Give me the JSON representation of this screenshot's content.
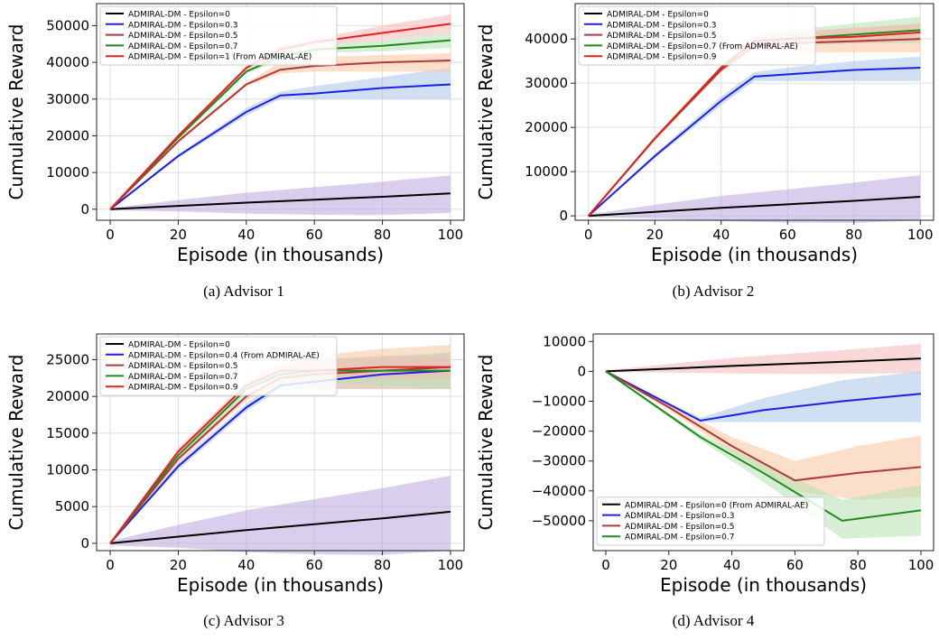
{
  "chart_data": [
    {
      "type": "line",
      "caption": "(a) Advisor 1",
      "xlabel": "Episode (in thousands)",
      "ylabel": "Cumulative Reward",
      "xlim": [
        -4,
        104
      ],
      "ylim": [
        -3000,
        56000
      ],
      "xticks": [
        0,
        20,
        40,
        60,
        80,
        100
      ],
      "yticks": [
        0,
        10000,
        20000,
        30000,
        40000,
        50000
      ],
      "grid": true,
      "legend_position": "top-left",
      "series": [
        {
          "name": "ADMIRAL-DM - Epsilon=0",
          "color": "#000000",
          "band_color": "#b9a8dc",
          "x": [
            0,
            20,
            40,
            60,
            80,
            100
          ],
          "y": [
            0,
            900,
            1800,
            2600,
            3400,
            4300
          ],
          "lower": [
            -300,
            -600,
            -1200,
            -1500,
            -1600,
            -1000
          ],
          "upper": [
            300,
            2500,
            4500,
            6000,
            7500,
            9200
          ]
        },
        {
          "name": "ADMIRAL-DM - Epsilon=0.3",
          "color": "#1f1fe6",
          "band_color": "#aac4e6",
          "x": [
            0,
            20,
            40,
            50,
            60,
            80,
            100
          ],
          "y": [
            0,
            14500,
            26500,
            31000,
            31500,
            33000,
            34000
          ],
          "lower": [
            0,
            14000,
            25500,
            30000,
            30000,
            30000,
            30000
          ],
          "upper": [
            0,
            15000,
            27500,
            32000,
            33500,
            36000,
            38500
          ]
        },
        {
          "name": "ADMIRAL-DM - Epsilon=0.5",
          "color": "#b03a3a",
          "band_color": "#f7c5a0",
          "x": [
            0,
            20,
            40,
            50,
            60,
            80,
            100
          ],
          "y": [
            0,
            18500,
            34000,
            38000,
            39000,
            40000,
            40500
          ],
          "lower": [
            0,
            18000,
            33500,
            37000,
            37500,
            37500,
            37500
          ],
          "upper": [
            0,
            19000,
            34500,
            40000,
            41500,
            42000,
            42500
          ]
        },
        {
          "name": "ADMIRAL-DM - Epsilon=0.7",
          "color": "#1f8a1f",
          "band_color": "#b7e0b0",
          "x": [
            0,
            20,
            40,
            50,
            60,
            80,
            100
          ],
          "y": [
            0,
            19500,
            37500,
            41500,
            43500,
            44500,
            46000
          ],
          "lower": [
            0,
            19000,
            37000,
            40500,
            42500,
            43000,
            44000
          ],
          "upper": [
            0,
            20000,
            38000,
            42500,
            44500,
            46000,
            48000
          ]
        },
        {
          "name": "ADMIRAL-DM - Epsilon=1 (From ADMIRAL-AE)",
          "color": "#e61f1f",
          "band_color": "#f8b8b8",
          "x": [
            0,
            20,
            40,
            50,
            60,
            80,
            100
          ],
          "y": [
            0,
            20000,
            38500,
            43500,
            45500,
            48000,
            50500
          ],
          "lower": [
            0,
            19500,
            38000,
            43000,
            44500,
            46000,
            48000
          ],
          "upper": [
            0,
            20500,
            39000,
            44500,
            46500,
            50000,
            53000
          ]
        }
      ]
    },
    {
      "type": "line",
      "caption": "(b) Advisor 2",
      "xlabel": "Episode (in thousands)",
      "ylabel": "Cumulative Reward",
      "xlim": [
        -4,
        104
      ],
      "ylim": [
        -1000,
        48000
      ],
      "xticks": [
        0,
        20,
        40,
        60,
        80,
        100
      ],
      "yticks": [
        0,
        10000,
        20000,
        30000,
        40000
      ],
      "grid": true,
      "legend_position": "top-left",
      "series": [
        {
          "name": "ADMIRAL-DM - Epsilon=0",
          "color": "#000000",
          "band_color": "#b9a8dc",
          "x": [
            0,
            20,
            40,
            60,
            80,
            100
          ],
          "y": [
            0,
            900,
            1800,
            2600,
            3400,
            4300
          ],
          "lower": [
            -300,
            -600,
            -1200,
            -1500,
            -1600,
            -1000
          ],
          "upper": [
            300,
            2500,
            4500,
            6000,
            7500,
            9200
          ]
        },
        {
          "name": "ADMIRAL-DM - Epsilon=0.3",
          "color": "#1f1fe6",
          "band_color": "#aac4e6",
          "x": [
            0,
            20,
            40,
            50,
            60,
            80,
            100
          ],
          "y": [
            0,
            13500,
            26000,
            31500,
            32000,
            33000,
            33500
          ],
          "lower": [
            0,
            13000,
            25000,
            30500,
            30500,
            30500,
            30500
          ],
          "upper": [
            0,
            14000,
            27000,
            32500,
            33500,
            35000,
            36000
          ]
        },
        {
          "name": "ADMIRAL-DM - Epsilon=0.5",
          "color": "#b03a3a",
          "band_color": "#f7c5a0",
          "x": [
            0,
            20,
            40,
            50,
            60,
            80,
            100
          ],
          "y": [
            0,
            17500,
            33000,
            38500,
            39000,
            39500,
            40000
          ],
          "lower": [
            0,
            17000,
            32500,
            37500,
            37000,
            37000,
            37000
          ],
          "upper": [
            0,
            18000,
            33500,
            40000,
            41500,
            42500,
            43500
          ]
        },
        {
          "name": "ADMIRAL-DM - Epsilon=0.7 (From ADMIRAL-AE)",
          "color": "#1f8a1f",
          "band_color": "#b7e0b0",
          "x": [
            0,
            20,
            40,
            50,
            60,
            80,
            100
          ],
          "y": [
            0,
            17500,
            33500,
            39500,
            40000,
            41000,
            42000
          ],
          "lower": [
            0,
            17000,
            33000,
            38500,
            38500,
            39000,
            39000
          ],
          "upper": [
            0,
            18000,
            34000,
            41000,
            42000,
            43500,
            45000
          ]
        },
        {
          "name": "ADMIRAL-DM - Epsilon=0.9",
          "color": "#e61f1f",
          "band_color": "#f8b8b8",
          "x": [
            0,
            20,
            40,
            50,
            60,
            80,
            100
          ],
          "y": [
            0,
            17500,
            33500,
            39500,
            40000,
            40500,
            41500
          ],
          "lower": [
            0,
            17000,
            33000,
            39000,
            39000,
            39000,
            39500
          ],
          "upper": [
            0,
            18000,
            34000,
            40500,
            41500,
            42500,
            43500
          ]
        }
      ]
    },
    {
      "type": "line",
      "caption": "(c) Advisor 3",
      "xlabel": "Episode (in thousands)",
      "ylabel": "Cumulative Reward",
      "xlim": [
        -4,
        104
      ],
      "ylim": [
        -1000,
        28500
      ],
      "xticks": [
        0,
        20,
        40,
        60,
        80,
        100
      ],
      "yticks": [
        0,
        5000,
        10000,
        15000,
        20000,
        25000
      ],
      "grid": true,
      "legend_position": "top-left",
      "series": [
        {
          "name": "ADMIRAL-DM - Epsilon=0",
          "color": "#000000",
          "band_color": "#b9a8dc",
          "x": [
            0,
            20,
            40,
            60,
            80,
            100
          ],
          "y": [
            0,
            900,
            1800,
            2600,
            3400,
            4300
          ],
          "lower": [
            -300,
            -600,
            -1200,
            -1500,
            -1600,
            -1000
          ],
          "upper": [
            300,
            2500,
            4500,
            6000,
            7500,
            9200
          ]
        },
        {
          "name": "ADMIRAL-DM - Epsilon=0.4 (From ADMIRAL-AE)",
          "color": "#1f1fe6",
          "band_color": "#aac4e6",
          "x": [
            0,
            20,
            40,
            50,
            60,
            80,
            100
          ],
          "y": [
            0,
            10500,
            18500,
            21500,
            22000,
            23000,
            23500
          ],
          "lower": [
            0,
            10000,
            18000,
            21000,
            21000,
            21000,
            21000
          ],
          "upper": [
            0,
            11000,
            19000,
            22500,
            23500,
            25000,
            26000
          ]
        },
        {
          "name": "ADMIRAL-DM - Epsilon=0.5",
          "color": "#b03a3a",
          "band_color": "#f7c5a0",
          "x": [
            0,
            20,
            40,
            50,
            60,
            80,
            100
          ],
          "y": [
            0,
            11500,
            20000,
            22500,
            23000,
            23500,
            24000
          ],
          "lower": [
            0,
            11000,
            19500,
            21500,
            21000,
            21000,
            21000
          ],
          "upper": [
            0,
            12000,
            20500,
            24000,
            25500,
            26500,
            27000
          ]
        },
        {
          "name": "ADMIRAL-DM - Epsilon=0.7",
          "color": "#1f8a1f",
          "band_color": "#b7e0b0",
          "x": [
            0,
            20,
            40,
            50,
            60,
            80,
            100
          ],
          "y": [
            0,
            12000,
            21000,
            23000,
            23500,
            23500,
            23500
          ],
          "lower": [
            0,
            11500,
            20500,
            22000,
            22000,
            21500,
            21000
          ],
          "upper": [
            0,
            12500,
            21500,
            24000,
            25000,
            25500,
            26000
          ]
        },
        {
          "name": "ADMIRAL-DM - Epsilon=0.9",
          "color": "#e61f1f",
          "band_color": "#f8b8b8",
          "x": [
            0,
            20,
            40,
            50,
            60,
            80,
            100
          ],
          "y": [
            0,
            12500,
            21500,
            23500,
            23500,
            24000,
            24000
          ],
          "lower": [
            0,
            12000,
            21000,
            22500,
            22500,
            22500,
            22500
          ],
          "upper": [
            0,
            13000,
            22000,
            24500,
            25000,
            25500,
            25500
          ]
        }
      ]
    },
    {
      "type": "line",
      "caption": "(d) Advisor 4",
      "xlabel": "Episode (in thousands)",
      "ylabel": "Cumulative Reward",
      "xlim": [
        -4,
        104
      ],
      "ylim": [
        -60000,
        12500
      ],
      "xticks": [
        0,
        20,
        40,
        60,
        80,
        100
      ],
      "yticks": [
        -50000,
        -40000,
        -30000,
        -20000,
        -10000,
        0,
        10000
      ],
      "grid": false,
      "legend_position": "bottom-left",
      "series": [
        {
          "name": "ADMIRAL-DM - Epsilon=0 (From ADMIRAL-AE)",
          "color": "#000000",
          "band_color": "#f2b8b8",
          "x": [
            0,
            20,
            40,
            60,
            80,
            100
          ],
          "y": [
            0,
            900,
            1800,
            2600,
            3400,
            4300
          ],
          "lower": [
            -300,
            -400,
            -700,
            -900,
            -800,
            -600
          ],
          "upper": [
            300,
            2500,
            4500,
            6000,
            7500,
            9200
          ]
        },
        {
          "name": "ADMIRAL-DM - Epsilon=0.3",
          "color": "#1f1fe6",
          "band_color": "#aac4e6",
          "x": [
            0,
            30,
            50,
            75,
            100
          ],
          "y": [
            0,
            -16500,
            -13000,
            -10000,
            -7500
          ],
          "lower": [
            0,
            -17000,
            -17000,
            -17000,
            -17000
          ],
          "upper": [
            0,
            -15500,
            -9000,
            -3000,
            0
          ]
        },
        {
          "name": "ADMIRAL-DM - Epsilon=0.5",
          "color": "#b03a3a",
          "band_color": "#f7c5a0",
          "x": [
            0,
            20,
            40,
            60,
            80,
            100
          ],
          "y": [
            0,
            -12000,
            -25000,
            -36500,
            -34000,
            -32000
          ],
          "lower": [
            0,
            -13000,
            -27000,
            -40000,
            -43000,
            -42000
          ],
          "upper": [
            0,
            -11000,
            -22000,
            -30000,
            -25000,
            -21500
          ]
        },
        {
          "name": "ADMIRAL-DM - Epsilon=0.7",
          "color": "#1f8a1f",
          "band_color": "#b7e0b0",
          "x": [
            0,
            30,
            50,
            75,
            100
          ],
          "y": [
            0,
            -22000,
            -34000,
            -50000,
            -46500
          ],
          "lower": [
            0,
            -23000,
            -37000,
            -56000,
            -55000
          ],
          "upper": [
            0,
            -21000,
            -31000,
            -43000,
            -38000
          ]
        }
      ]
    }
  ]
}
